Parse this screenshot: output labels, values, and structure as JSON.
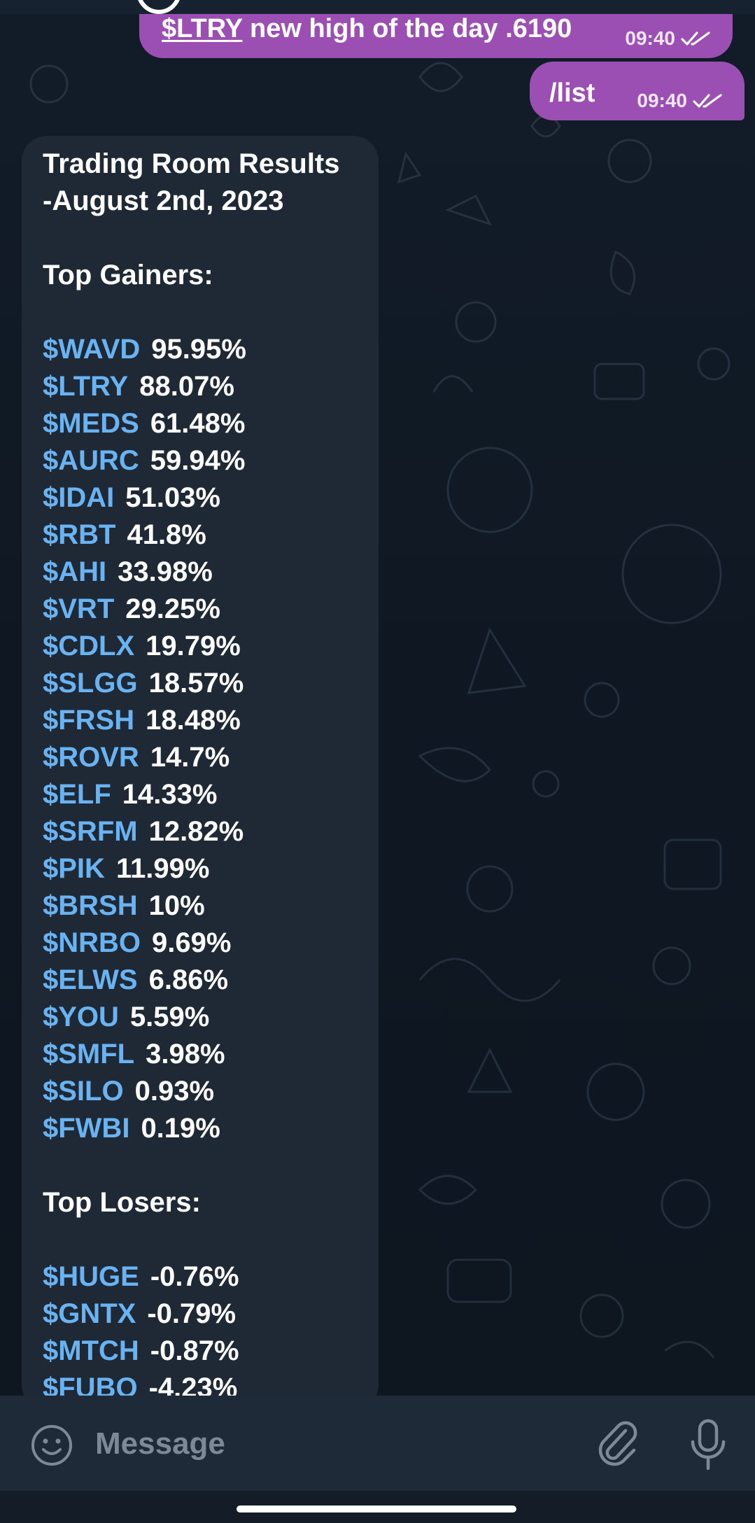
{
  "outgoing_messages": [
    {
      "ticker": "$LTRY",
      "rest": " new high of the day .6190",
      "time": "09:40"
    },
    {
      "text": "/list",
      "time": "09:40"
    }
  ],
  "incoming_message": {
    "title": "Trading Room Results\n-August 2nd, 2023",
    "gainers_heading": "Top Gainers:",
    "gainers": [
      {
        "ticker": "$WAVD",
        "pct": "95.95%"
      },
      {
        "ticker": "$LTRY",
        "pct": "88.07%"
      },
      {
        "ticker": "$MEDS",
        "pct": "61.48%"
      },
      {
        "ticker": "$AURC",
        "pct": "59.94%"
      },
      {
        "ticker": "$IDAI",
        "pct": "51.03%"
      },
      {
        "ticker": "$RBT",
        "pct": "41.8%"
      },
      {
        "ticker": "$AHI",
        "pct": "33.98%"
      },
      {
        "ticker": "$VRT",
        "pct": "29.25%"
      },
      {
        "ticker": "$CDLX",
        "pct": "19.79%"
      },
      {
        "ticker": "$SLGG",
        "pct": "18.57%"
      },
      {
        "ticker": "$FRSH",
        "pct": "18.48%"
      },
      {
        "ticker": "$ROVR",
        "pct": "14.7%"
      },
      {
        "ticker": "$ELF",
        "pct": "14.33%"
      },
      {
        "ticker": "$SRFM",
        "pct": "12.82%"
      },
      {
        "ticker": "$PIK",
        "pct": "11.99%"
      },
      {
        "ticker": "$BRSH",
        "pct": "10%"
      },
      {
        "ticker": "$NRBO",
        "pct": "9.69%"
      },
      {
        "ticker": "$ELWS",
        "pct": "6.86%"
      },
      {
        "ticker": "$YOU",
        "pct": "5.59%"
      },
      {
        "ticker": "$SMFL",
        "pct": "3.98%"
      },
      {
        "ticker": "$SILO",
        "pct": "0.93%"
      },
      {
        "ticker": "$FWBI",
        "pct": "0.19%"
      }
    ],
    "losers_heading": "Top Losers:",
    "losers": [
      {
        "ticker": "$HUGE",
        "pct": "-0.76%"
      },
      {
        "ticker": "$GNTX",
        "pct": "-0.79%"
      },
      {
        "ticker": "$MTCH",
        "pct": "-0.87%"
      },
      {
        "ticker": "$FUBO",
        "pct": "-4.23%"
      }
    ]
  },
  "composer": {
    "placeholder": "Message",
    "emoji_icon": "emoji-icon",
    "attach_icon": "paperclip-icon",
    "mic_icon": "microphone-icon"
  },
  "colors": {
    "outgoing_bubble": "#9b4fb3",
    "incoming_bubble": "#1f2936",
    "ticker_link": "#6ab3f3",
    "chat_background": "#0e1621"
  }
}
